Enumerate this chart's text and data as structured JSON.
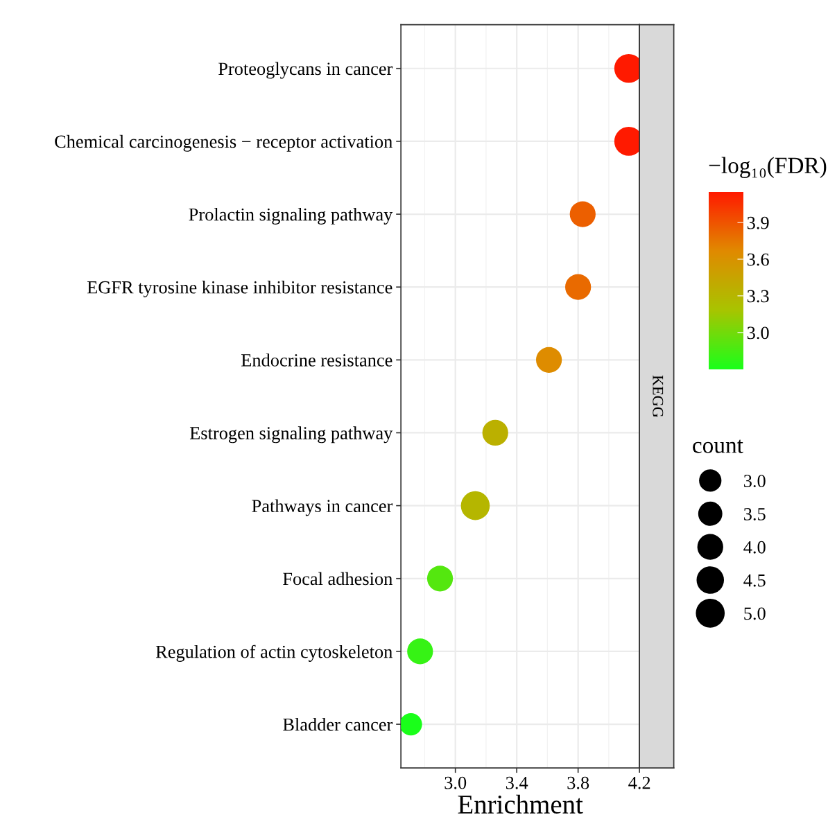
{
  "chart_data": {
    "type": "bubble",
    "orientation": "horizontal",
    "xlabel": "Enrichment",
    "clabel": "−log₁₀(FDR)",
    "legend_title": "count",
    "annotations": [
      "KEGG"
    ],
    "categories": [
      "Proteoglycans in cancer",
      "Chemical carcinogenesis − receptor activation",
      "Prolactin signaling pathway",
      "EGFR tyrosine kinase inhibitor resistance",
      "Endocrine resistance",
      "Estrogen signaling pathway",
      "Pathways in cancer",
      "Focal adhesion",
      "Regulation of actin cytoskeleton",
      "Bladder cancer"
    ],
    "values": [
      4.13,
      4.13,
      3.83,
      3.8,
      3.61,
      3.26,
      3.13,
      2.9,
      2.77,
      2.71
    ],
    "sizes": [
      5,
      5,
      4,
      4,
      4,
      4,
      5,
      4,
      4,
      3
    ],
    "cvalues": [
      4.15,
      4.15,
      3.85,
      3.8,
      3.65,
      3.35,
      3.3,
      2.9,
      2.8,
      2.7
    ],
    "size_legend": [
      {
        "value": 3,
        "label": "3.0"
      },
      {
        "value": 3.5,
        "label": "3.5"
      },
      {
        "value": 4,
        "label": "4.0"
      },
      {
        "value": 4.5,
        "label": "4.5"
      },
      {
        "value": 5,
        "label": "5.0"
      }
    ],
    "clim": [
      2.7,
      4.15
    ],
    "cticks": [
      {
        "value": 3,
        "label": "3.0"
      },
      3.3,
      3.6,
      3.9
    ],
    "xlim": [
      2.645,
      4.2
    ],
    "xticks": [
      {
        "value": 3,
        "label": "3.0"
      },
      3.4,
      3.8,
      4.2
    ],
    "grid": true
  }
}
